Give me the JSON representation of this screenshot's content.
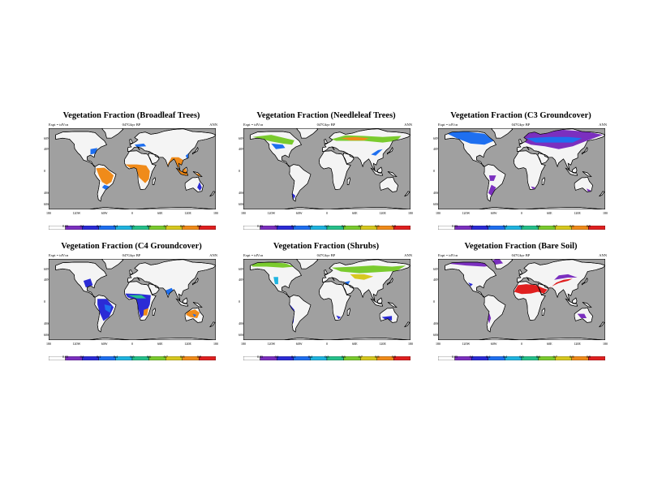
{
  "common": {
    "subtitle_left": "Expt = tdVcn",
    "subtitle_center": "047Gkyr BP",
    "subtitle_right": "ANN",
    "lat_labels": [
      "60N",
      "40N",
      "0",
      "40S",
      "60S"
    ],
    "lon_labels": [
      "180",
      "120W",
      "60W",
      "0",
      "60E",
      "120E",
      "180"
    ],
    "colorbar_labels": [
      "0.05",
      "0.1",
      "0.2",
      "0.4",
      "0.5",
      "0.6",
      "0.7",
      "0.8",
      "0.9"
    ],
    "colorbar_colors": [
      "#ffffff",
      "#7b2fbf",
      "#2b2bd6",
      "#1e6ff0",
      "#1fb4e0",
      "#26c08a",
      "#7acb2e",
      "#d7c81f",
      "#f08b1a",
      "#e02020"
    ],
    "ocean_color": "#a0a0a0",
    "land_color": "#f4f4f4"
  },
  "panels": [
    {
      "title": "Vegetation Fraction (Broadleaf Trees)",
      "subtitle_left": "Expt = tdVcn",
      "subtitle_center": "047Gkyr BP",
      "subtitle_right": "ANN",
      "colorbar_labels": [
        "0.05",
        "0.1",
        "0.2",
        "0.4",
        "0.5",
        "0.6",
        "0.7",
        "0.8",
        "0.9"
      ]
    },
    {
      "title": "Vegetation Fraction (Needleleaf Trees)",
      "subtitle_left": "Expt = tdVcn",
      "subtitle_center": "047Gkyr BP",
      "subtitle_right": "ANN",
      "colorbar_labels": [
        "0.05",
        "0.1",
        "0.2",
        "0.4",
        "0.5",
        "0.6",
        "0.7",
        "0.8",
        "0.9"
      ]
    },
    {
      "title": "Vegetation Fraction (C3 Groundcover)",
      "subtitle_left": "Expt = tdVcn",
      "subtitle_center": "047Gkyr BP",
      "subtitle_right": "ANN",
      "colorbar_labels": [
        "0.05",
        "0.1",
        "0.2",
        "0.4",
        "0.5",
        "0.6",
        "0.7",
        "0.8",
        "0.9"
      ]
    },
    {
      "title": "Vegetation Fraction (C4 Groundcover)",
      "subtitle_left": "Expt = tdVcn",
      "subtitle_center": "047Gkyr BP",
      "subtitle_right": "ANN",
      "colorbar_labels": [
        "0.05",
        "0.1",
        "0.2",
        "0.4",
        "0.5",
        "0.6",
        "0.7",
        "0.8",
        "0.9"
      ]
    },
    {
      "title": "Vegetation Fraction (Shrubs)",
      "subtitle_left": "Expt = tdVcn",
      "subtitle_center": "047Gkyr BP",
      "subtitle_right": "ANN",
      "colorbar_labels": [
        "0.05",
        "0.1",
        "0.2",
        "0.4",
        "0.5",
        "0.6",
        "0.7",
        "0.8",
        "0.9"
      ]
    },
    {
      "title": "Vegetation Fraction (Bare Soil)",
      "subtitle_left": "Expt = tdVcn",
      "subtitle_center": "047Gkyr BP",
      "subtitle_right": "ANN",
      "colorbar_labels": [
        "0.05",
        "0.1",
        "0.2",
        "0.4",
        "0.5",
        "0.6",
        "0.7",
        "0.8",
        "0.9"
      ]
    }
  ]
}
